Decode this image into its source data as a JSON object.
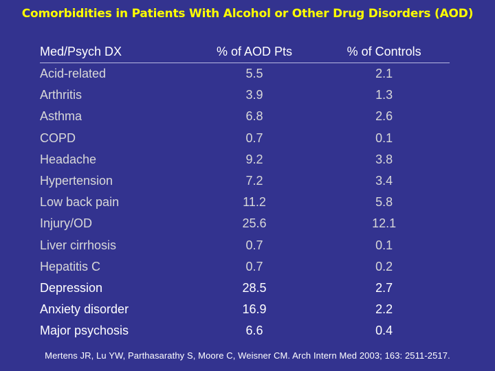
{
  "title": "Comorbidities in Patients With Alcohol or Other Drug Disorders (AOD)",
  "table": {
    "headers": [
      "Med/Psych DX",
      "% of AOD Pts",
      "% of Controls"
    ],
    "rows": [
      {
        "dx": "Acid-related",
        "aod": "5.5",
        "controls": "2.1",
        "group": "med"
      },
      {
        "dx": "Arthritis",
        "aod": "3.9",
        "controls": "1.3",
        "group": "med"
      },
      {
        "dx": "Asthma",
        "aod": "6.8",
        "controls": "2.6",
        "group": "med"
      },
      {
        "dx": "COPD",
        "aod": "0.7",
        "controls": "0.1",
        "group": "med"
      },
      {
        "dx": "Headache",
        "aod": "9.2",
        "controls": "3.8",
        "group": "med"
      },
      {
        "dx": "Hypertension",
        "aod": "7.2",
        "controls": "3.4",
        "group": "med"
      },
      {
        "dx": "Low back pain",
        "aod": "11.2",
        "controls": "5.8",
        "group": "med"
      },
      {
        "dx": "Injury/OD",
        "aod": "25.6",
        "controls": "12.1",
        "group": "med"
      },
      {
        "dx": "Liver cirrhosis",
        "aod": "0.7",
        "controls": "0.1",
        "group": "med"
      },
      {
        "dx": "Hepatitis C",
        "aod": "0.7",
        "controls": "0.2",
        "group": "med"
      },
      {
        "dx": "Depression",
        "aod": "28.5",
        "controls": "2.7",
        "group": "psych"
      },
      {
        "dx": "Anxiety disorder",
        "aod": "16.9",
        "controls": "2.2",
        "group": "psych"
      },
      {
        "dx": "Major psychosis",
        "aod": "6.6",
        "controls": "0.4",
        "group": "psych"
      }
    ]
  },
  "citation": "Mertens JR, Lu YW, Parthasarathy S, Moore C, Weisner CM. Arch Intern Med 2003; 163: 2511-2517.",
  "colors": {
    "background": "#33338f",
    "title": "#ffff00",
    "medical_text": "#d8d8d8",
    "psych_text": "#ffffff"
  }
}
